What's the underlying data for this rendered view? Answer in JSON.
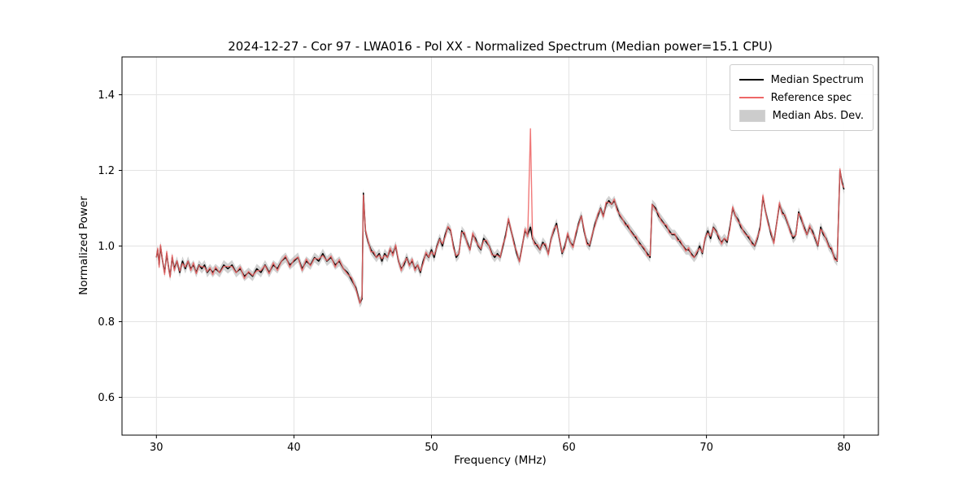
{
  "chart_data": {
    "type": "line",
    "title": "2024-12-27 - Cor 97 - LWA016 - Pol XX - Normalized Spectrum (Median power=15.1 CPU)",
    "xlabel": "Frequency (MHz)",
    "ylabel": "Normalized Power",
    "xlim": [
      27.5,
      82.5
    ],
    "ylim": [
      0.5,
      1.5
    ],
    "xticks": [
      30,
      40,
      50,
      60,
      70,
      80
    ],
    "yticks": [
      0.6,
      0.8,
      1.0,
      1.2,
      1.4
    ],
    "grid": true,
    "legend_position": "upper right",
    "series": [
      {
        "name": "Median Spectrum",
        "color": "#000000",
        "points": [
          [
            30.0,
            0.97
          ],
          [
            30.1,
            0.99
          ],
          [
            30.2,
            0.95
          ],
          [
            30.3,
            1.0
          ],
          [
            30.45,
            0.96
          ],
          [
            30.6,
            0.93
          ],
          [
            30.75,
            0.98
          ],
          [
            30.9,
            0.94
          ],
          [
            31.0,
            0.92
          ],
          [
            31.15,
            0.97
          ],
          [
            31.3,
            0.94
          ],
          [
            31.5,
            0.96
          ],
          [
            31.7,
            0.93
          ],
          [
            31.9,
            0.96
          ],
          [
            32.1,
            0.94
          ],
          [
            32.3,
            0.96
          ],
          [
            32.5,
            0.94
          ],
          [
            32.7,
            0.95
          ],
          [
            32.9,
            0.93
          ],
          [
            33.1,
            0.95
          ],
          [
            33.3,
            0.94
          ],
          [
            33.5,
            0.95
          ],
          [
            33.7,
            0.93
          ],
          [
            33.9,
            0.94
          ],
          [
            34.1,
            0.93
          ],
          [
            34.3,
            0.94
          ],
          [
            34.6,
            0.93
          ],
          [
            34.9,
            0.95
          ],
          [
            35.2,
            0.94
          ],
          [
            35.5,
            0.95
          ],
          [
            35.8,
            0.93
          ],
          [
            36.1,
            0.94
          ],
          [
            36.4,
            0.92
          ],
          [
            36.7,
            0.93
          ],
          [
            37.0,
            0.92
          ],
          [
            37.3,
            0.94
          ],
          [
            37.6,
            0.93
          ],
          [
            37.9,
            0.95
          ],
          [
            38.2,
            0.93
          ],
          [
            38.5,
            0.95
          ],
          [
            38.8,
            0.94
          ],
          [
            39.1,
            0.96
          ],
          [
            39.4,
            0.97
          ],
          [
            39.7,
            0.95
          ],
          [
            40.0,
            0.96
          ],
          [
            40.3,
            0.97
          ],
          [
            40.6,
            0.94
          ],
          [
            40.9,
            0.96
          ],
          [
            41.2,
            0.95
          ],
          [
            41.5,
            0.97
          ],
          [
            41.8,
            0.96
          ],
          [
            42.1,
            0.98
          ],
          [
            42.4,
            0.96
          ],
          [
            42.7,
            0.97
          ],
          [
            43.0,
            0.95
          ],
          [
            43.3,
            0.96
          ],
          [
            43.6,
            0.94
          ],
          [
            43.9,
            0.93
          ],
          [
            44.2,
            0.91
          ],
          [
            44.5,
            0.89
          ],
          [
            44.8,
            0.85
          ],
          [
            44.95,
            0.86
          ],
          [
            45.05,
            1.14
          ],
          [
            45.2,
            1.04
          ],
          [
            45.4,
            1.01
          ],
          [
            45.6,
            0.99
          ],
          [
            45.8,
            0.98
          ],
          [
            46.0,
            0.97
          ],
          [
            46.2,
            0.98
          ],
          [
            46.4,
            0.96
          ],
          [
            46.6,
            0.98
          ],
          [
            46.8,
            0.97
          ],
          [
            47.0,
            0.99
          ],
          [
            47.2,
            0.98
          ],
          [
            47.4,
            1.0
          ],
          [
            47.6,
            0.96
          ],
          [
            47.8,
            0.94
          ],
          [
            48.0,
            0.95
          ],
          [
            48.2,
            0.97
          ],
          [
            48.4,
            0.95
          ],
          [
            48.6,
            0.96
          ],
          [
            48.8,
            0.94
          ],
          [
            49.0,
            0.95
          ],
          [
            49.2,
            0.93
          ],
          [
            49.4,
            0.96
          ],
          [
            49.6,
            0.98
          ],
          [
            49.8,
            0.97
          ],
          [
            50.0,
            0.99
          ],
          [
            50.2,
            0.97
          ],
          [
            50.4,
            1.0
          ],
          [
            50.6,
            1.02
          ],
          [
            50.8,
            1.0
          ],
          [
            51.0,
            1.03
          ],
          [
            51.2,
            1.05
          ],
          [
            51.4,
            1.04
          ],
          [
            51.6,
            1.0
          ],
          [
            51.8,
            0.97
          ],
          [
            52.0,
            0.98
          ],
          [
            52.2,
            1.04
          ],
          [
            52.4,
            1.03
          ],
          [
            52.6,
            1.01
          ],
          [
            52.8,
            0.99
          ],
          [
            53.0,
            1.03
          ],
          [
            53.2,
            1.02
          ],
          [
            53.4,
            1.0
          ],
          [
            53.6,
            0.99
          ],
          [
            53.8,
            1.02
          ],
          [
            54.0,
            1.01
          ],
          [
            54.2,
            1.0
          ],
          [
            54.4,
            0.98
          ],
          [
            54.6,
            0.97
          ],
          [
            54.8,
            0.98
          ],
          [
            55.0,
            0.97
          ],
          [
            55.2,
            1.0
          ],
          [
            55.4,
            1.03
          ],
          [
            55.6,
            1.07
          ],
          [
            55.8,
            1.04
          ],
          [
            56.0,
            1.01
          ],
          [
            56.2,
            0.98
          ],
          [
            56.4,
            0.96
          ],
          [
            56.6,
            1.0
          ],
          [
            56.8,
            1.04
          ],
          [
            57.0,
            1.03
          ],
          [
            57.2,
            1.05
          ],
          [
            57.35,
            1.02
          ],
          [
            57.5,
            1.01
          ],
          [
            57.7,
            1.0
          ],
          [
            57.9,
            0.99
          ],
          [
            58.1,
            1.01
          ],
          [
            58.3,
            1.0
          ],
          [
            58.5,
            0.98
          ],
          [
            58.7,
            1.02
          ],
          [
            58.9,
            1.04
          ],
          [
            59.1,
            1.06
          ],
          [
            59.3,
            1.02
          ],
          [
            59.5,
            0.98
          ],
          [
            59.7,
            1.0
          ],
          [
            59.9,
            1.03
          ],
          [
            60.1,
            1.01
          ],
          [
            60.3,
            1.0
          ],
          [
            60.5,
            1.03
          ],
          [
            60.7,
            1.06
          ],
          [
            60.9,
            1.08
          ],
          [
            61.1,
            1.04
          ],
          [
            61.3,
            1.01
          ],
          [
            61.5,
            1.0
          ],
          [
            61.7,
            1.03
          ],
          [
            61.9,
            1.06
          ],
          [
            62.1,
            1.08
          ],
          [
            62.3,
            1.1
          ],
          [
            62.5,
            1.08
          ],
          [
            62.7,
            1.11
          ],
          [
            62.9,
            1.12
          ],
          [
            63.1,
            1.11
          ],
          [
            63.3,
            1.12
          ],
          [
            63.5,
            1.1
          ],
          [
            63.7,
            1.08
          ],
          [
            63.9,
            1.07
          ],
          [
            64.1,
            1.06
          ],
          [
            64.3,
            1.05
          ],
          [
            64.5,
            1.04
          ],
          [
            64.7,
            1.03
          ],
          [
            64.9,
            1.02
          ],
          [
            65.1,
            1.01
          ],
          [
            65.3,
            1.0
          ],
          [
            65.5,
            0.99
          ],
          [
            65.7,
            0.98
          ],
          [
            65.9,
            0.97
          ],
          [
            66.05,
            1.11
          ],
          [
            66.3,
            1.1
          ],
          [
            66.5,
            1.08
          ],
          [
            66.7,
            1.07
          ],
          [
            66.9,
            1.06
          ],
          [
            67.1,
            1.05
          ],
          [
            67.3,
            1.04
          ],
          [
            67.5,
            1.03
          ],
          [
            67.7,
            1.03
          ],
          [
            67.9,
            1.02
          ],
          [
            68.1,
            1.01
          ],
          [
            68.3,
            1.0
          ],
          [
            68.5,
            0.99
          ],
          [
            68.7,
            0.99
          ],
          [
            68.9,
            0.98
          ],
          [
            69.1,
            0.97
          ],
          [
            69.3,
            0.98
          ],
          [
            69.5,
            1.0
          ],
          [
            69.7,
            0.98
          ],
          [
            69.9,
            1.02
          ],
          [
            70.1,
            1.04
          ],
          [
            70.3,
            1.02
          ],
          [
            70.5,
            1.05
          ],
          [
            70.7,
            1.04
          ],
          [
            70.9,
            1.02
          ],
          [
            71.1,
            1.01
          ],
          [
            71.3,
            1.02
          ],
          [
            71.5,
            1.01
          ],
          [
            71.7,
            1.05
          ],
          [
            71.9,
            1.1
          ],
          [
            72.1,
            1.08
          ],
          [
            72.3,
            1.07
          ],
          [
            72.5,
            1.05
          ],
          [
            72.7,
            1.04
          ],
          [
            72.9,
            1.03
          ],
          [
            73.1,
            1.02
          ],
          [
            73.3,
            1.01
          ],
          [
            73.5,
            1.0
          ],
          [
            73.7,
            1.02
          ],
          [
            73.9,
            1.05
          ],
          [
            74.1,
            1.13
          ],
          [
            74.3,
            1.09
          ],
          [
            74.5,
            1.06
          ],
          [
            74.7,
            1.03
          ],
          [
            74.9,
            1.01
          ],
          [
            75.1,
            1.06
          ],
          [
            75.3,
            1.11
          ],
          [
            75.5,
            1.09
          ],
          [
            75.7,
            1.08
          ],
          [
            75.9,
            1.06
          ],
          [
            76.1,
            1.04
          ],
          [
            76.3,
            1.02
          ],
          [
            76.5,
            1.03
          ],
          [
            76.7,
            1.09
          ],
          [
            76.9,
            1.07
          ],
          [
            77.1,
            1.05
          ],
          [
            77.3,
            1.03
          ],
          [
            77.5,
            1.05
          ],
          [
            77.7,
            1.04
          ],
          [
            77.9,
            1.02
          ],
          [
            78.1,
            1.0
          ],
          [
            78.3,
            1.05
          ],
          [
            78.5,
            1.03
          ],
          [
            78.7,
            1.02
          ],
          [
            78.9,
            1.0
          ],
          [
            79.1,
            0.99
          ],
          [
            79.3,
            0.97
          ],
          [
            79.5,
            0.96
          ],
          [
            79.7,
            1.2
          ],
          [
            79.85,
            1.17
          ],
          [
            80.0,
            1.15
          ]
        ]
      },
      {
        "name": "Reference spec",
        "color": "#ee6767",
        "derive_from": "Median Spectrum",
        "jitter": 0.006,
        "overrides": [
          [
            57.2,
            1.31
          ]
        ]
      },
      {
        "name": "Median Abs. Dev.",
        "band_type": "median_abs_dev",
        "color": "#9a9a9a",
        "halfwidth": 0.013
      }
    ]
  }
}
